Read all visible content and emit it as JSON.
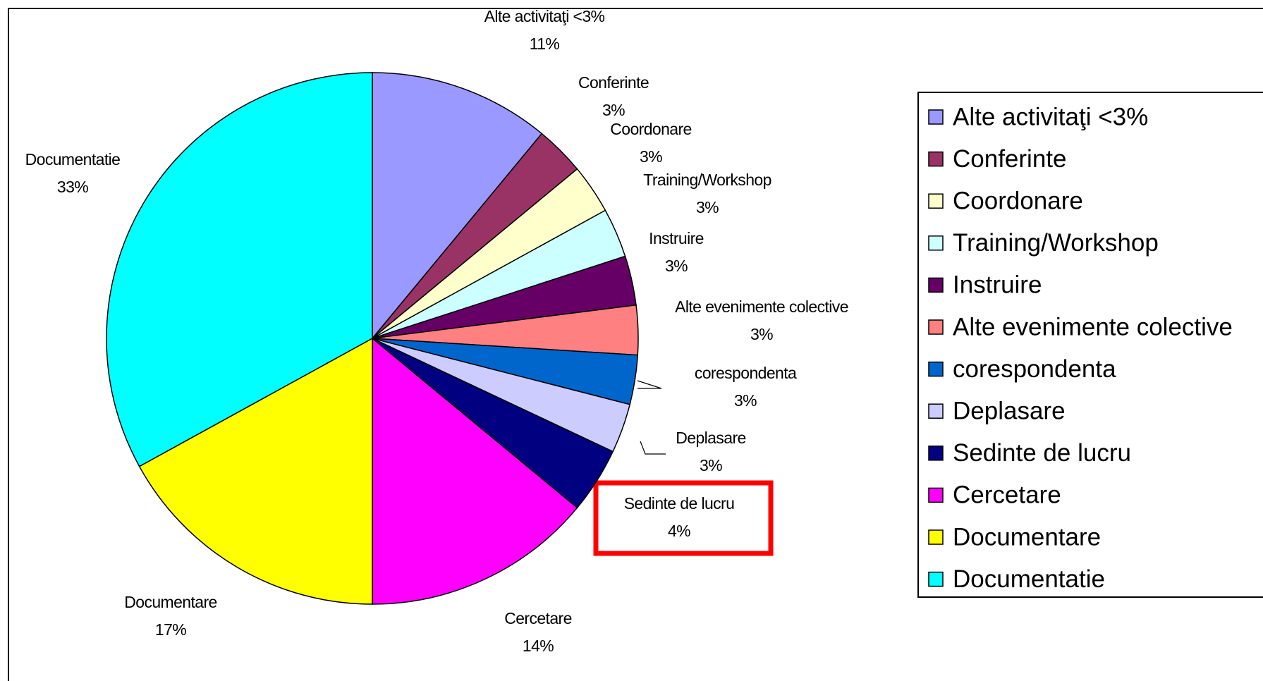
{
  "chart_data": {
    "type": "pie",
    "categories": [
      "Alte activitaţi <3%",
      "Conferinte",
      "Coordonare",
      "Training/Workshop",
      "Instruire",
      "Alte evenimente colective",
      "corespondenta",
      "Deplasare",
      "Sedinte de lucru",
      "Cercetare",
      "Documentare",
      "Documentatie"
    ],
    "values": [
      11,
      3,
      3,
      3,
      3,
      3,
      3,
      3,
      4,
      14,
      17,
      33
    ],
    "value_labels": [
      "11%",
      "3%",
      "3%",
      "3%",
      "3%",
      "3%",
      "3%",
      "3%",
      "4%",
      "14%",
      "17%",
      "33%"
    ],
    "colors": [
      "#9999ff",
      "#993366",
      "#ffffcc",
      "#ccffff",
      "#660066",
      "#ff8080",
      "#0066cc",
      "#ccccff",
      "#000080",
      "#ff00ff",
      "#ffff00",
      "#00ffff"
    ],
    "legend": "right"
  }
}
